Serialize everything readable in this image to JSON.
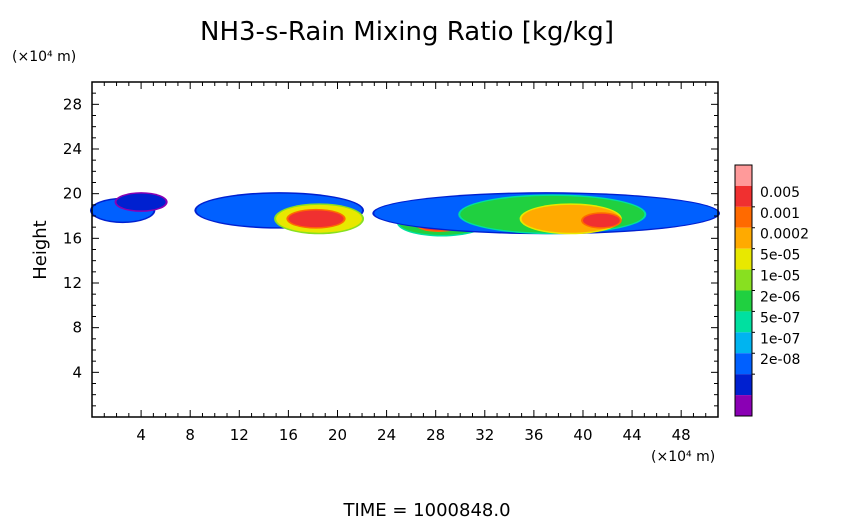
{
  "chart_data": {
    "type": "heatmap",
    "title": "NH3-s-Rain Mixing Ratio [kg/kg]",
    "ylabel": "Height",
    "xlabel": "",
    "x_unit": "(×10⁴ m)",
    "y_unit": "(×10⁴ m)",
    "xlim": [
      0,
      51
    ],
    "ylim": [
      0,
      30
    ],
    "x_ticks": [
      "4",
      "8",
      "12",
      "16",
      "20",
      "24",
      "28",
      "32",
      "36",
      "40",
      "44",
      "48"
    ],
    "y_ticks": [
      "4",
      "8",
      "12",
      "16",
      "20",
      "24",
      "28"
    ],
    "grid": false,
    "colorbar": {
      "labels": [
        "0.005",
        "0.001",
        "0.0002",
        "5e-05",
        "1e-05",
        "2e-06",
        "5e-07",
        "1e-07",
        "2e-08"
      ],
      "colors": [
        "#ff9a9a",
        "#f03030",
        "#ff6a00",
        "#ffaa00",
        "#e8e800",
        "#88e020",
        "#20d040",
        "#00e0a0",
        "#00b4f0",
        "#0060ff",
        "#0020d0",
        "#8a00b4"
      ]
    },
    "footer": "TIME = 1000848.0",
    "regions": [
      {
        "x": [
          0,
          5
        ],
        "y": [
          17.5,
          19.5
        ],
        "level": 2
      },
      {
        "x": [
          2,
          6
        ],
        "y": [
          18.5,
          20
        ],
        "level": 1
      },
      {
        "x": [
          8.5,
          22
        ],
        "y": [
          17,
          20
        ],
        "level": 2
      },
      {
        "x": [
          15,
          22
        ],
        "y": [
          16.5,
          19
        ],
        "level": 7
      },
      {
        "x": [
          16,
          20.5
        ],
        "y": [
          17,
          18.5
        ],
        "level": 10
      },
      {
        "x": [
          25,
          32
        ],
        "y": [
          16.3,
          18.5
        ],
        "level": 5
      },
      {
        "x": [
          26.5,
          30
        ],
        "y": [
          16.7,
          17.8
        ],
        "level": 10
      },
      {
        "x": [
          23,
          51
        ],
        "y": [
          16.5,
          20
        ],
        "level": 2
      },
      {
        "x": [
          30,
          45
        ],
        "y": [
          16.5,
          19.8
        ],
        "level": 5
      },
      {
        "x": [
          35,
          43
        ],
        "y": [
          16.5,
          19
        ],
        "level": 8
      },
      {
        "x": [
          40,
          43
        ],
        "y": [
          17,
          18.2
        ],
        "level": 10
      }
    ]
  }
}
